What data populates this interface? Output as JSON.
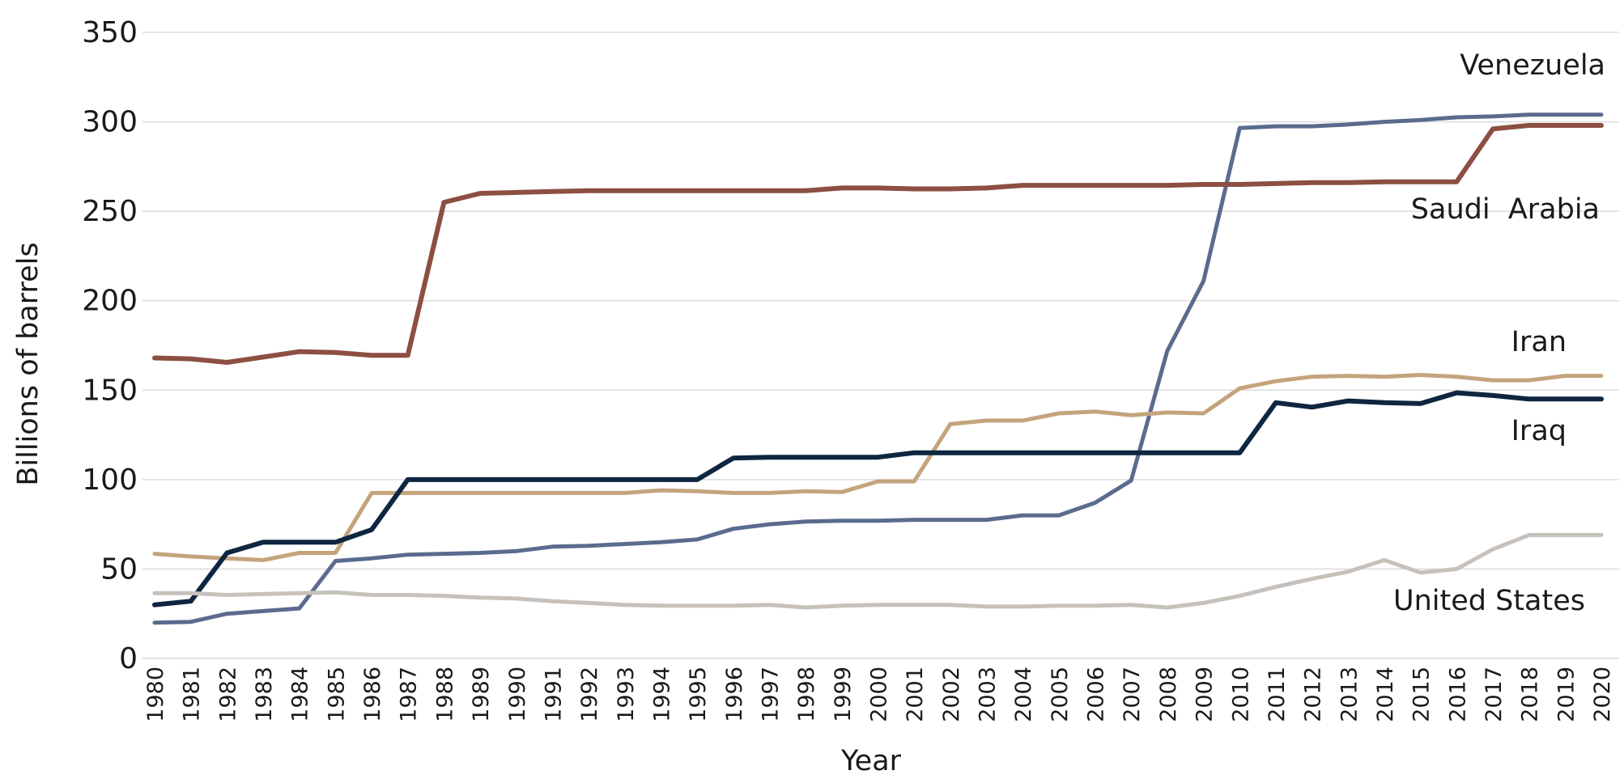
{
  "chart_data": {
    "type": "line",
    "title": "",
    "xlabel": "Year",
    "ylabel": "Billions of barrels",
    "ylim": [
      0,
      350
    ],
    "yticks": [
      0,
      50,
      100,
      150,
      200,
      250,
      300,
      350
    ],
    "grid": "horizontal",
    "x": [
      1980,
      1981,
      1982,
      1983,
      1984,
      1985,
      1986,
      1987,
      1988,
      1989,
      1990,
      1991,
      1992,
      1993,
      1994,
      1995,
      1996,
      1997,
      1998,
      1999,
      2000,
      2001,
      2002,
      2003,
      2004,
      2005,
      2006,
      2007,
      2008,
      2009,
      2010,
      2011,
      2012,
      2013,
      2014,
      2015,
      2016,
      2017,
      2018,
      2019,
      2020
    ],
    "series": [
      {
        "name": "Venezuela",
        "color": "#5b6b8f",
        "values": [
          20,
          20.5,
          25,
          26.5,
          28,
          54.5,
          56,
          58,
          58.5,
          59,
          60,
          62.5,
          63,
          64,
          65,
          66.5,
          72.5,
          75,
          76.5,
          77,
          77,
          77.5,
          77.5,
          77.5,
          80,
          80,
          87,
          99.5,
          172,
          211,
          296.5,
          297.5,
          297.5,
          298.5,
          300,
          301,
          302.5,
          303,
          304,
          304,
          304
        ]
      },
      {
        "name": "Saudi  Arabia",
        "color": "#8c4f42",
        "values": [
          168,
          167.5,
          165.5,
          168.5,
          171.5,
          171,
          169.5,
          169.5,
          255,
          260,
          260.5,
          261,
          261.5,
          261.5,
          261.5,
          261.5,
          261.5,
          261.5,
          261.5,
          263,
          263,
          262.5,
          262.5,
          263,
          264.5,
          264.5,
          264.5,
          264.5,
          264.5,
          265,
          265,
          265.5,
          266,
          266,
          266.5,
          266.5,
          266.5,
          296,
          298,
          298,
          298
        ]
      },
      {
        "name": "Iran",
        "color": "#c4a47c",
        "values": [
          58.5,
          57,
          56,
          55,
          59,
          59,
          92.5,
          92.5,
          92.5,
          92.5,
          92.5,
          92.5,
          92.5,
          92.5,
          94,
          93.5,
          92.5,
          92.5,
          93.5,
          93,
          99,
          99,
          131,
          133,
          133,
          137,
          138,
          136,
          137.5,
          137,
          151,
          155,
          157.5,
          158,
          157.5,
          158.5,
          157.5,
          155.5,
          155.5,
          158,
          158
        ]
      },
      {
        "name": "Iraq",
        "color": "#0e2640",
        "values": [
          30,
          32,
          59,
          65,
          65,
          65,
          72,
          100,
          100,
          100,
          100,
          100,
          100,
          100,
          100,
          100,
          112,
          112.5,
          112.5,
          112.5,
          112.5,
          115,
          115,
          115,
          115,
          115,
          115,
          115,
          115,
          115,
          115,
          143,
          140.5,
          144,
          143,
          142.5,
          148.5,
          147,
          145,
          145,
          145
        ]
      },
      {
        "name": "United States",
        "color": "#c7c1bc",
        "values": [
          36.5,
          36.5,
          35.5,
          36,
          36.5,
          37,
          35.5,
          35.5,
          35,
          34,
          33.5,
          32,
          31,
          30,
          29.5,
          29.5,
          29.5,
          30,
          28.5,
          29.5,
          30,
          30,
          30,
          29,
          29,
          29.5,
          29.5,
          30,
          28.5,
          31,
          35,
          40,
          44.5,
          48.5,
          55,
          48,
          50,
          61,
          69,
          69,
          69
        ]
      }
    ]
  }
}
